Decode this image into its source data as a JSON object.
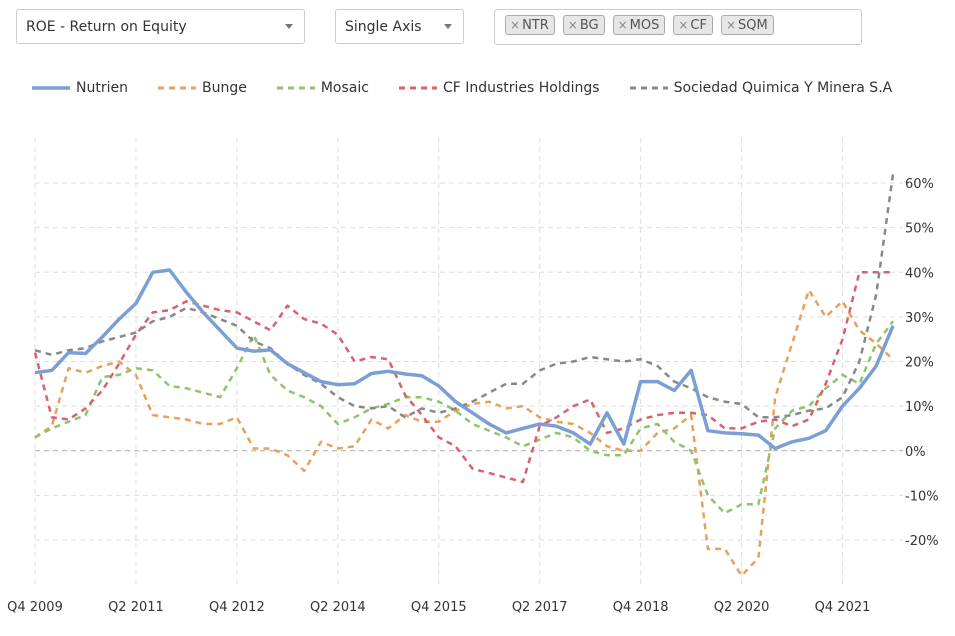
{
  "controls": {
    "metric": "ROE - Return on Equity",
    "axis_mode": "Single Axis",
    "tickers": [
      "NTR",
      "BG",
      "MOS",
      "CF",
      "SQM"
    ]
  },
  "chart_data": {
    "type": "line",
    "title": "",
    "xlabel": "",
    "ylabel": "",
    "x_tick_labels": [
      "Q4 2009",
      "Q2 2011",
      "Q4 2012",
      "Q2 2014",
      "Q4 2015",
      "Q2 2017",
      "Q4 2018",
      "Q2 2020",
      "Q4 2021"
    ],
    "y_ticks": [
      -20,
      -10,
      0,
      10,
      20,
      30,
      40,
      50,
      60
    ],
    "y_tick_labels": [
      "-20%",
      "-10%",
      "0%",
      "10%",
      "20%",
      "30%",
      "40%",
      "50%",
      "60%"
    ],
    "ylim": [
      -30,
      66
    ],
    "grid": true,
    "legend_position": "top-left",
    "series": [
      {
        "name": "Nutrien",
        "color": "#7b9fd4",
        "style": "solid",
        "values": [
          17.5,
          18,
          22,
          21.8,
          25.5,
          29.5,
          33,
          40,
          40.5,
          35.5,
          31,
          27,
          23,
          22.3,
          22.6,
          19.5,
          17.5,
          15.5,
          14.8,
          15,
          17.3,
          17.8,
          17.2,
          16.8,
          14.5,
          11,
          8.5,
          6,
          4,
          5,
          6,
          5.5,
          4,
          1.5,
          8.5,
          1.5,
          15.5,
          15.5,
          13.5,
          18,
          4.5,
          4,
          3.8,
          3.5,
          0.5,
          2,
          2.8,
          4.5,
          10,
          14,
          19,
          28
        ]
      },
      {
        "name": "Bunge",
        "color": "#e8a05c",
        "style": "dashed",
        "values": [
          3,
          5.5,
          18.5,
          17.5,
          19,
          20,
          17,
          8,
          7.5,
          7,
          6,
          6,
          7.5,
          0.5,
          0.5,
          -1,
          -4.5,
          2,
          0.5,
          1,
          7,
          5,
          8,
          6.5,
          6.5,
          9,
          10.5,
          11,
          9.5,
          10,
          7.5,
          6.5,
          6,
          4,
          1,
          0,
          0,
          4,
          5,
          8,
          -22,
          -22,
          -28,
          -24,
          12,
          24,
          36,
          30,
          33.5,
          27,
          24,
          20.5
        ]
      },
      {
        "name": "Mosaic",
        "color": "#8cc46a",
        "style": "dashed",
        "values": [
          3,
          5,
          6.5,
          8,
          16.5,
          17,
          18.5,
          18,
          14.5,
          14,
          13,
          12,
          18.5,
          26,
          17,
          13.5,
          12,
          10,
          6,
          7.5,
          9.5,
          10.5,
          12,
          12,
          11,
          9,
          6,
          4.5,
          3,
          1,
          2.5,
          4,
          3,
          0,
          -1,
          -1,
          5,
          6,
          2,
          0,
          -10,
          -14,
          -12,
          -12,
          5,
          9,
          10,
          14,
          17,
          15,
          24,
          29
        ]
      },
      {
        "name": "CF Industries Holdings",
        "color": "#d9626a",
        "style": "dashed",
        "values": [
          22,
          7.5,
          7,
          9.5,
          13.5,
          19.5,
          26,
          31,
          31.5,
          33.5,
          32.5,
          31.5,
          31,
          29,
          27,
          32.5,
          29.5,
          28.5,
          26,
          20,
          21,
          20.5,
          12.5,
          8,
          3,
          1,
          -4,
          -5,
          -6,
          -7,
          5.5,
          7.5,
          10,
          11.5,
          4,
          5,
          7,
          8,
          8.5,
          8.5,
          8,
          5,
          5,
          6.5,
          7,
          5.5,
          7,
          15,
          25,
          40,
          40,
          40
        ]
      },
      {
        "name": "Sociedad Quimica Y Minera S.A",
        "color": "#888888",
        "style": "dashed",
        "values": [
          22.5,
          21.5,
          22.5,
          23,
          24.5,
          25.5,
          26.5,
          29,
          30,
          32,
          31,
          29.5,
          28,
          24.5,
          23,
          19.5,
          17,
          15,
          12,
          10,
          9.5,
          10,
          7.5,
          9.5,
          8.5,
          9.5,
          11,
          13,
          15,
          15,
          18,
          19.5,
          20,
          21,
          20.5,
          20,
          20.5,
          19,
          15.5,
          14,
          12,
          11,
          10.5,
          7.5,
          7.5,
          8,
          9,
          9.5,
          12,
          20,
          35,
          62
        ]
      }
    ]
  }
}
